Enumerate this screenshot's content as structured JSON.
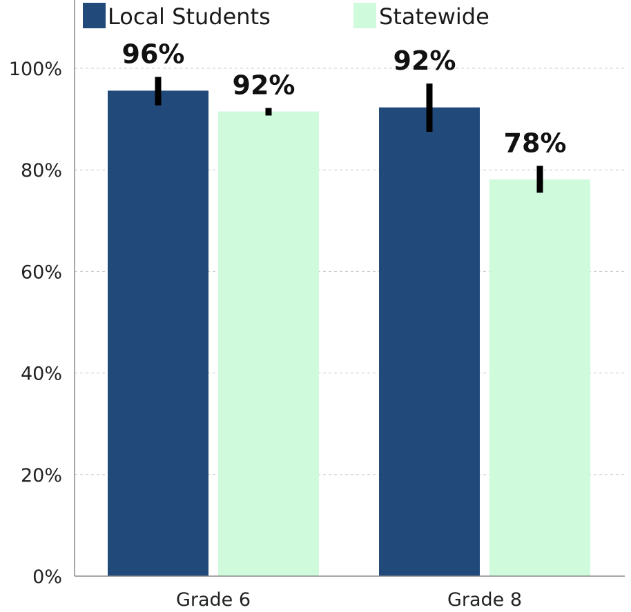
{
  "chart_data": {
    "type": "bar",
    "categories": [
      "Grade 6",
      "Grade 8"
    ],
    "series": [
      {
        "name": "Local Students",
        "color": "#214a7b",
        "values": [
          95.6,
          92.3
        ],
        "error": [
          [
            92.7,
            98.3
          ],
          [
            87.5,
            97.0
          ]
        ],
        "labels": [
          "96%",
          "92%"
        ]
      },
      {
        "name": "Statewide",
        "color": "#d0fadc",
        "values": [
          91.5,
          78.1
        ],
        "error": [
          [
            90.7,
            92.2
          ],
          [
            75.5,
            80.8
          ]
        ],
        "labels": [
          "92%",
          "78%"
        ]
      }
    ],
    "ylim": [
      0,
      115
    ],
    "yticks": [
      0,
      20,
      40,
      60,
      80,
      100
    ],
    "ytick_labels": [
      "0%",
      "20%",
      "40%",
      "60%",
      "80%",
      "100%"
    ],
    "grid": true,
    "legend_position": "top"
  }
}
